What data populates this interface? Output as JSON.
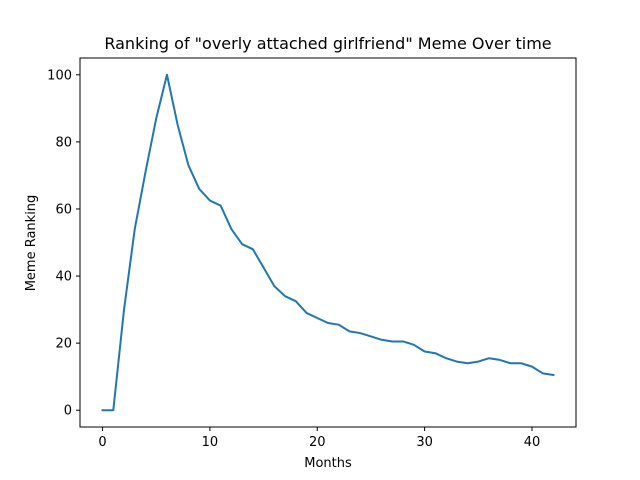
{
  "chart_data": {
    "type": "line",
    "title": "Ranking of \"overly attached girlfriend\" Meme Over time",
    "xlabel": "Months",
    "ylabel": "Meme Ranking",
    "xlim": [
      -2.1,
      44.1
    ],
    "ylim": [
      -5,
      105
    ],
    "xticks": [
      0,
      10,
      20,
      30,
      40
    ],
    "yticks": [
      0,
      20,
      40,
      60,
      80,
      100
    ],
    "grid": false,
    "legend": "none",
    "series": [
      {
        "color": "#1f77b4",
        "x": [
          0,
          1,
          2,
          3,
          4,
          5,
          6,
          7,
          8,
          9,
          10,
          11,
          12,
          13,
          14,
          15,
          16,
          17,
          18,
          19,
          20,
          21,
          22,
          23,
          24,
          25,
          26,
          27,
          28,
          29,
          30,
          31,
          32,
          33,
          34,
          35,
          36,
          37,
          38,
          39,
          40,
          41,
          42
        ],
        "values": [
          0,
          0,
          30,
          54,
          71,
          87,
          100,
          85,
          73,
          66,
          62.5,
          61,
          54,
          49.5,
          48,
          42.5,
          37,
          34,
          32.5,
          29,
          27.5,
          26,
          25.5,
          23.5,
          23,
          22,
          21,
          20.5,
          20.5,
          19.5,
          17.5,
          17,
          15.5,
          14.5,
          14,
          14.5,
          15.5,
          15,
          14,
          14,
          13,
          11,
          10.5
        ]
      }
    ]
  }
}
